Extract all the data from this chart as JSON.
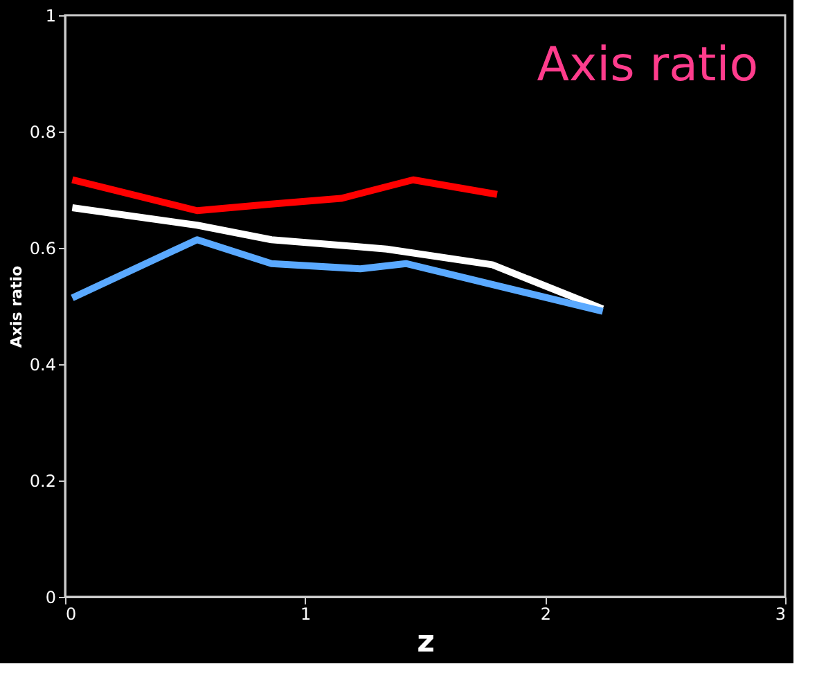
{
  "chart_data": {
    "type": "line",
    "title": "Axis ratio",
    "xlabel": "z",
    "ylabel": "Axis ratio",
    "series": [
      {
        "color": "#ff0000",
        "x": [
          0.03,
          0.55,
          0.85,
          1.15,
          1.45,
          1.8
        ],
        "values": [
          0.717,
          0.664,
          0.675,
          0.685,
          0.717,
          0.692
        ]
      },
      {
        "color": "#ffffff",
        "x": [
          0.03,
          0.55,
          0.86,
          1.34,
          1.78,
          2.24
        ],
        "values": [
          0.669,
          0.639,
          0.614,
          0.598,
          0.571,
          0.495
        ]
      },
      {
        "color": "#5aa9ff",
        "x": [
          0.03,
          0.55,
          0.86,
          1.23,
          1.42,
          2.24
        ],
        "values": [
          0.514,
          0.614,
          0.573,
          0.564,
          0.573,
          0.491
        ]
      }
    ],
    "xlim": [
      0,
      3
    ],
    "xticks": [
      0,
      1,
      2,
      3
    ],
    "ylim": [
      0,
      1
    ],
    "yticks": [
      0,
      0.2,
      0.4,
      0.6,
      0.8,
      1
    ],
    "grid": false,
    "marker": "none",
    "line_style": "solid"
  }
}
